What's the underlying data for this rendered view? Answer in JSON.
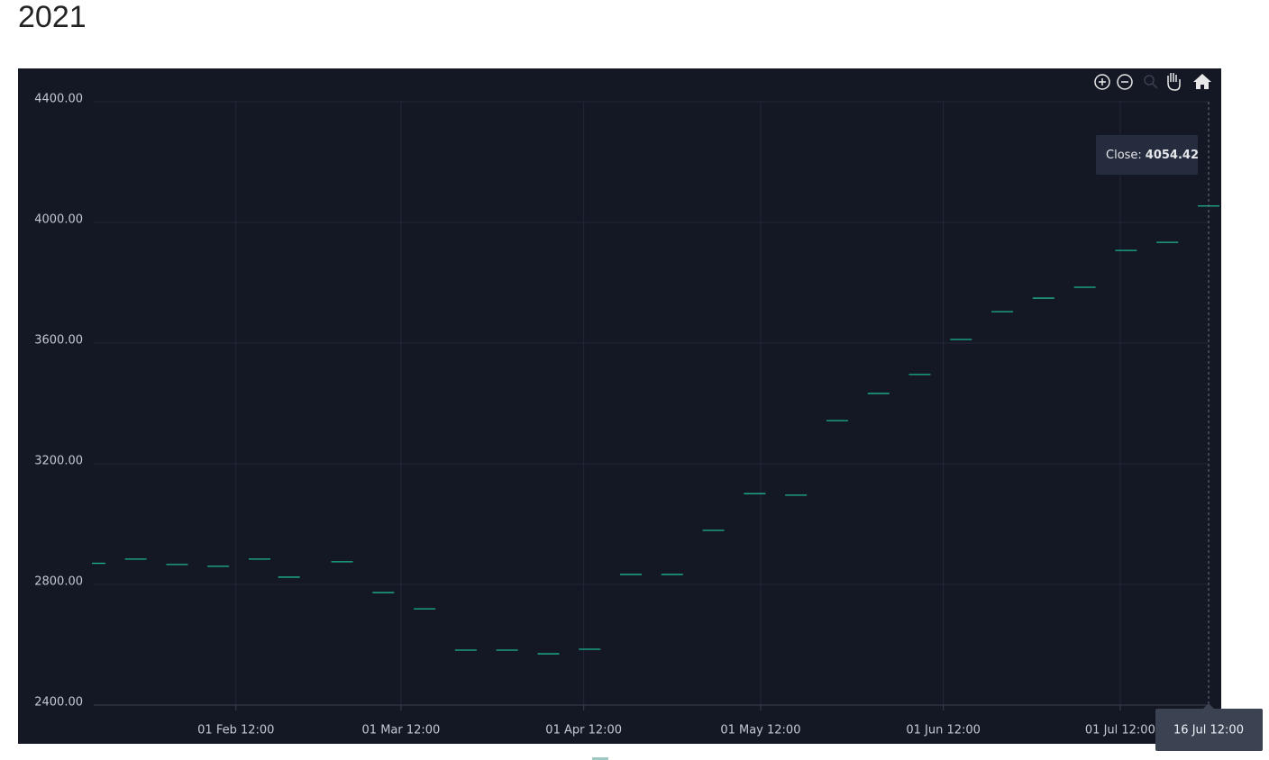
{
  "chart_data": {
    "type": "line-dash",
    "title": "2021",
    "x": [
      "2021-01-08T12:00",
      "2021-01-15T12:00",
      "2021-01-22T12:00",
      "2021-01-29T12:00",
      "2021-02-05T12:00",
      "2021-02-10T12:00",
      "2021-02-19T12:00",
      "2021-02-26T12:00",
      "2021-03-05T12:00",
      "2021-03-12T12:00",
      "2021-03-19T12:00",
      "2021-03-26T12:00",
      "2021-04-02T12:00",
      "2021-04-09T12:00",
      "2021-04-16T12:00",
      "2021-04-23T12:00",
      "2021-04-30T12:00",
      "2021-05-07T12:00",
      "2021-05-14T12:00",
      "2021-05-21T12:00",
      "2021-05-28T12:00",
      "2021-06-04T12:00",
      "2021-06-11T12:00",
      "2021-06-18T12:00",
      "2021-06-25T12:00",
      "2021-07-02T12:00",
      "2021-07-09T12:00",
      "2021-07-16T12:00"
    ],
    "series": [
      {
        "name": "Close",
        "color": "#1db592",
        "values": [
          2870,
          2884,
          2866,
          2860,
          2884,
          2824,
          2875,
          2773,
          2719,
          2582,
          2582,
          2570,
          2585,
          2833,
          2833,
          2979,
          3101,
          3096,
          3343,
          3433,
          3496,
          3612,
          3704,
          3749,
          3785,
          3907,
          3934,
          4054.42
        ]
      }
    ],
    "ylim": [
      2400,
      4400
    ],
    "yticks": [
      {
        "value": 2400,
        "label": "2400.00"
      },
      {
        "value": 2800,
        "label": "2800.00"
      },
      {
        "value": 3200,
        "label": "3200.00"
      },
      {
        "value": 3600,
        "label": "3600.00"
      },
      {
        "value": 4000,
        "label": "4000.00"
      },
      {
        "value": 4400,
        "label": "4400.00"
      }
    ],
    "xlim": [
      "2021-01-08T09:00",
      "2021-07-16T12:00"
    ],
    "xticks": [
      {
        "value": "2021-02-01T12:00",
        "label": "01 Feb 12:00"
      },
      {
        "value": "2021-03-01T12:00",
        "label": "01 Mar 12:00"
      },
      {
        "value": "2021-04-01T12:00",
        "label": "01 Apr 12:00"
      },
      {
        "value": "2021-05-01T12:00",
        "label": "01 May 12:00"
      },
      {
        "value": "2021-06-01T12:00",
        "label": "01 Jun 12:00"
      },
      {
        "value": "2021-07-01T12:00",
        "label": "01 Jul 12:00"
      }
    ],
    "grid": true,
    "tooltip": {
      "label": "Close:",
      "point": 27
    },
    "crosshair_label": "16 Jul 12:00"
  }
}
